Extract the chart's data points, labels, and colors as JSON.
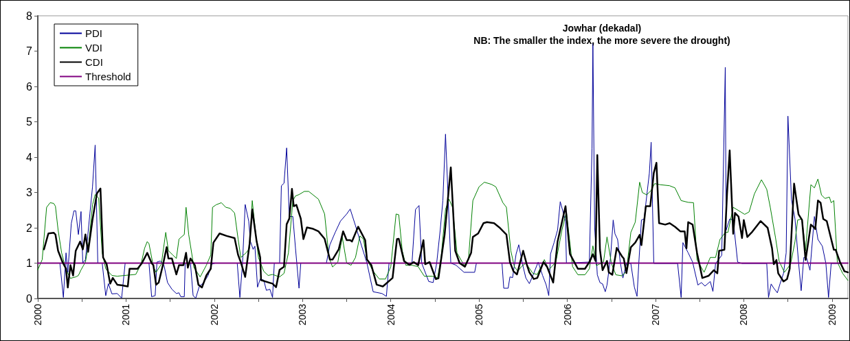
{
  "chart_data": {
    "type": "line",
    "title": "Jowhar (dekadal)",
    "subtitle": "NB: The smaller the index, the more severe the drought)",
    "xlim": [
      2000,
      2009.18
    ],
    "xticks": [
      2000,
      {
        "value": 2000.5,
        "label": null
      },
      2001,
      {
        "value": 2001.5,
        "label": null
      },
      2002,
      {
        "value": 2002.5,
        "label": null
      },
      2003,
      {
        "value": 2003.5,
        "label": null
      },
      2004,
      {
        "value": 2004.5,
        "label": null
      },
      2005,
      {
        "value": 2005.5,
        "label": null
      },
      2006,
      {
        "value": 2006.5,
        "label": null
      },
      2007,
      {
        "value": 2007.5,
        "label": null
      },
      2008,
      {
        "value": 2008.5,
        "label": null
      },
      2009
    ],
    "ylim": [
      0,
      8
    ],
    "yticks": [
      0,
      1,
      2,
      3,
      4,
      5,
      6,
      7,
      8
    ],
    "grid": false,
    "legend": "top left",
    "marker": "none",
    "line_style": "solid",
    "series": [
      {
        "name": "PDI",
        "color": "#000099",
        "x": [
          2000.25,
          2000.29,
          2000.32,
          2000.34,
          2000.38,
          2000.41,
          2000.43,
          2000.46,
          2000.49,
          2000.51,
          2000.54,
          2000.59,
          2000.62,
          2000.65,
          2000.68,
          2000.73,
          2000.77,
          2000.8,
          2000.84,
          2000.9,
          2000.95,
          2000.99,
          2001.26,
          2001.29,
          2001.33,
          2001.35,
          2001.39,
          2001.43,
          2001.47,
          2001.52,
          2001.57,
          2001.6,
          2001.62,
          2001.66,
          2001.67,
          2001.73,
          2001.76,
          2001.79,
          2001.83,
          2001.88,
          2001.93,
          2001.97,
          2002.01,
          2002.26,
          2002.29,
          2002.32,
          2002.35,
          2002.39,
          2002.41,
          2002.44,
          2002.46,
          2002.49,
          2002.52,
          2002.56,
          2002.59,
          2002.63,
          2002.66,
          2002.68,
          2002.74,
          2002.76,
          2002.79,
          2002.82,
          2002.85,
          2002.89,
          2002.92,
          2002.96,
          2002.98,
          2003.27,
          2003.31,
          2003.37,
          2003.43,
          2003.5,
          2003.54,
          2003.6,
          2003.67,
          2003.73,
          2003.8,
          2003.9,
          2003.95,
          2003.98,
          2004.24,
          2004.28,
          2004.32,
          2004.35,
          2004.43,
          2004.48,
          2004.52,
          2004.56,
          2004.59,
          2004.62,
          2004.68,
          2004.74,
          2004.83,
          2004.95,
          2004.97,
          2005.26,
          2005.28,
          2005.33,
          2005.35,
          2005.38,
          2005.42,
          2005.45,
          2005.49,
          2005.53,
          2005.57,
          2005.61,
          2005.67,
          2005.72,
          2005.76,
          2005.79,
          2005.81,
          2005.85,
          2005.89,
          2005.92,
          2005.98,
          2005.99,
          2006.25,
          2006.28,
          2006.29,
          2006.31,
          2006.34,
          2006.37,
          2006.4,
          2006.43,
          2006.45,
          2006.49,
          2006.52,
          2006.54,
          2006.57,
          2006.6,
          2006.63,
          2006.67,
          2006.72,
          2006.76,
          2006.79,
          2006.81,
          2006.84,
          2006.87,
          2006.93,
          2006.95,
          2006.98,
          2007.25,
          2007.29,
          2007.31,
          2007.37,
          2007.42,
          2007.48,
          2007.52,
          2007.56,
          2007.62,
          2007.65,
          2007.68,
          2007.75,
          2007.79,
          2007.8,
          2007.84,
          2007.88,
          2007.93,
          2007.98,
          2008.26,
          2008.28,
          2008.31,
          2008.34,
          2008.38,
          2008.41,
          2008.45,
          2008.48,
          2008.5,
          2008.54,
          2008.58,
          2008.62,
          2008.65,
          2008.68,
          2008.71,
          2008.75,
          2008.8,
          2008.84,
          2008.89,
          2008.93,
          2008.96,
          2008.99,
          2009.1
        ],
        "values": [
          1.0,
          0.03,
          1.29,
          0.74,
          2.13,
          2.48,
          2.48,
          1.81,
          2.46,
          1.0,
          1.1,
          2.39,
          3.16,
          4.34,
          1.0,
          1.0,
          0.08,
          0.42,
          0.13,
          0.14,
          0.01,
          1.0,
          1.0,
          0.05,
          0.08,
          1.03,
          1.06,
          0.94,
          0.45,
          0.26,
          0.14,
          0.16,
          0.05,
          0.05,
          1.0,
          1.0,
          0.08,
          0.01,
          0.34,
          0.45,
          0.65,
          0.97,
          1.0,
          1.0,
          0.03,
          1.0,
          2.66,
          2.19,
          1.61,
          1.39,
          1.48,
          0.32,
          0.55,
          0.52,
          0.23,
          0.26,
          0.03,
          1.0,
          1.0,
          3.19,
          3.26,
          4.26,
          2.32,
          2.32,
          1.42,
          0.29,
          1.0,
          1.0,
          1.52,
          1.87,
          2.19,
          2.39,
          2.53,
          2.06,
          1.48,
          1.0,
          0.19,
          0.14,
          0.06,
          1.0,
          1.0,
          2.52,
          2.63,
          1.0,
          0.48,
          0.45,
          1.0,
          1.94,
          2.77,
          4.65,
          1.0,
          0.94,
          0.74,
          0.74,
          1.0,
          1.0,
          0.29,
          0.29,
          0.61,
          0.59,
          1.26,
          1.52,
          1.0,
          0.58,
          0.42,
          0.65,
          1.03,
          0.65,
          0.39,
          0.08,
          1.26,
          1.58,
          1.94,
          2.74,
          2.19,
          1.0,
          1.03,
          4.25,
          7.22,
          2.0,
          0.67,
          0.45,
          0.41,
          0.19,
          0.38,
          1.16,
          2.22,
          1.83,
          1.67,
          1.03,
          0.58,
          0.99,
          0.99,
          0.32,
          0.06,
          0.99,
          2.22,
          2.25,
          3.55,
          4.42,
          0.99,
          0.99,
          0.03,
          1.58,
          1.29,
          1.03,
          0.38,
          0.45,
          0.35,
          0.48,
          0.2,
          0.99,
          1.22,
          6.54,
          1.93,
          2.25,
          2.22,
          1.03,
          0.99,
          0.99,
          0.03,
          0.41,
          0.29,
          0.16,
          0.41,
          0.71,
          1.29,
          5.16,
          2.8,
          2.25,
          1.03,
          0.22,
          1.16,
          1.16,
          0.8,
          2.32,
          1.67,
          1.48,
          0.99,
          0.03,
          0.99,
          0.99
        ]
      },
      {
        "name": "VDI",
        "color": "#008000",
        "x": [
          2000.0,
          2000.05,
          2000.1,
          2000.14,
          2000.18,
          2000.2,
          2000.23,
          2000.27,
          2000.32,
          2000.37,
          2000.43,
          2000.46,
          2000.49,
          2000.54,
          2000.58,
          2000.62,
          2000.65,
          2000.69,
          2000.73,
          2000.77,
          2000.84,
          2000.9,
          2000.98,
          2001.11,
          2001.17,
          2001.21,
          2001.24,
          2001.26,
          2001.31,
          2001.34,
          2001.4,
          2001.45,
          2001.48,
          2001.53,
          2001.57,
          2001.6,
          2001.66,
          2001.68,
          2001.71,
          2001.77,
          2001.84,
          2001.91,
          2001.96,
          2001.98,
          2002.02,
          2002.08,
          2002.13,
          2002.18,
          2002.23,
          2002.27,
          2002.3,
          2002.36,
          2002.4,
          2002.43,
          2002.46,
          2002.5,
          2002.56,
          2002.61,
          2002.66,
          2002.74,
          2002.79,
          2002.84,
          2002.89,
          2002.92,
          2002.96,
          2003.02,
          2003.07,
          2003.18,
          2003.25,
          2003.3,
          2003.34,
          2003.4,
          2003.45,
          2003.5,
          2003.55,
          2003.6,
          2003.65,
          2003.69,
          2003.73,
          2003.8,
          2003.87,
          2003.94,
          2004.0,
          2004.06,
          2004.09,
          2004.13,
          2004.17,
          2004.24,
          2004.31,
          2004.38,
          2004.47,
          2004.53,
          2004.57,
          2004.62,
          2004.66,
          2004.7,
          2004.75,
          2004.83,
          2004.88,
          2004.93,
          2005.0,
          2005.06,
          2005.14,
          2005.19,
          2005.27,
          2005.31,
          2005.36,
          2005.4,
          2005.44,
          2005.48,
          2005.53,
          2005.61,
          2005.66,
          2005.74,
          2005.79,
          2005.87,
          2005.94,
          2005.99,
          2006.06,
          2006.12,
          2006.2,
          2006.25,
          2006.29,
          2006.33,
          2006.41,
          2006.45,
          2006.5,
          2006.55,
          2006.62,
          2006.67,
          2006.72,
          2006.77,
          2006.82,
          2006.85,
          2006.9,
          2006.95,
          2006.99,
          2007.05,
          2007.16,
          2007.22,
          2007.29,
          2007.37,
          2007.43,
          2007.47,
          2007.55,
          2007.62,
          2007.68,
          2007.73,
          2007.79,
          2007.82,
          2007.88,
          2008.01,
          2008.06,
          2008.12,
          2008.2,
          2008.26,
          2008.3,
          2008.36,
          2008.4,
          2008.46,
          2008.53,
          2008.58,
          2008.61,
          2008.66,
          2008.7,
          2008.72,
          2008.76,
          2008.8,
          2008.84,
          2008.88,
          2008.92,
          2008.97,
          2008.99,
          2009.02,
          2009.06,
          2009.12,
          2009.18
        ],
        "values": [
          0.81,
          1.1,
          2.58,
          2.71,
          2.69,
          2.61,
          1.94,
          1.29,
          0.81,
          0.57,
          0.61,
          0.65,
          0.81,
          1.03,
          1.61,
          2.65,
          2.94,
          2.84,
          1.29,
          0.84,
          0.65,
          0.63,
          0.65,
          0.68,
          0.97,
          1.42,
          1.61,
          1.55,
          0.9,
          0.74,
          0.97,
          1.87,
          1.35,
          1.23,
          1.13,
          1.68,
          1.81,
          2.58,
          1.81,
          0.87,
          0.61,
          0.94,
          1.23,
          2.58,
          2.65,
          2.71,
          2.58,
          2.55,
          2.42,
          1.68,
          1.16,
          1.29,
          1.42,
          2.77,
          2.06,
          1.16,
          0.77,
          0.65,
          0.68,
          0.61,
          0.71,
          1.29,
          2.77,
          2.9,
          2.94,
          3.03,
          3.03,
          2.81,
          2.39,
          1.16,
          0.89,
          1.03,
          1.74,
          1.0,
          0.94,
          1.16,
          1.77,
          1.68,
          1.1,
          0.77,
          0.55,
          0.55,
          0.9,
          2.39,
          2.37,
          1.35,
          0.94,
          0.94,
          0.9,
          0.63,
          0.63,
          0.58,
          1.16,
          2.52,
          2.81,
          2.58,
          1.29,
          0.94,
          1.1,
          2.77,
          3.16,
          3.29,
          3.23,
          3.16,
          2.71,
          2.58,
          1.35,
          0.9,
          0.77,
          0.9,
          1.0,
          0.71,
          0.68,
          1.1,
          0.81,
          1.03,
          1.94,
          2.45,
          0.9,
          0.67,
          0.67,
          0.84,
          1.49,
          0.93,
          1.03,
          1.74,
          0.99,
          0.67,
          0.64,
          0.77,
          1.87,
          2.16,
          3.29,
          3.0,
          2.93,
          3.06,
          3.25,
          3.22,
          3.19,
          3.13,
          2.77,
          2.72,
          2.71,
          1.09,
          0.74,
          1.16,
          1.16,
          1.67,
          1.87,
          1.87,
          2.58,
          2.38,
          2.45,
          2.96,
          3.36,
          3.09,
          2.58,
          1.71,
          1.06,
          0.74,
          0.97,
          1.61,
          2.22,
          2.25,
          1.35,
          2.0,
          3.22,
          3.13,
          3.38,
          2.93,
          2.83,
          2.87,
          2.71,
          2.77,
          1.03,
          0.71,
          0.51
        ]
      },
      {
        "name": "CDI",
        "color": "#000000",
        "x": [
          2000.07,
          2000.12,
          2000.18,
          2000.2,
          2000.23,
          2000.28,
          2000.32,
          2000.34,
          2000.37,
          2000.4,
          2000.43,
          2000.48,
          2000.51,
          2000.54,
          2000.57,
          2000.62,
          2000.67,
          2000.71,
          2000.74,
          2000.78,
          2000.82,
          2000.85,
          2000.9,
          2000.96,
          2001.02,
          2001.04,
          2001.13,
          2001.18,
          2001.24,
          2001.29,
          2001.31,
          2001.34,
          2001.37,
          2001.42,
          2001.46,
          2001.48,
          2001.52,
          2001.57,
          2001.6,
          2001.65,
          2001.68,
          2001.7,
          2001.73,
          2001.78,
          2001.82,
          2001.86,
          2001.91,
          2001.96,
          2001.99,
          2002.06,
          2002.14,
          2002.23,
          2002.27,
          2002.3,
          2002.35,
          2002.4,
          2002.43,
          2002.48,
          2002.52,
          2002.53,
          2002.62,
          2002.66,
          2002.7,
          2002.74,
          2002.79,
          2002.82,
          2002.85,
          2002.88,
          2002.9,
          2002.93,
          2002.98,
          2003.01,
          2003.05,
          2003.12,
          2003.18,
          2003.25,
          2003.31,
          2003.34,
          2003.41,
          2003.46,
          2003.5,
          2003.54,
          2003.56,
          2003.63,
          2003.71,
          2003.73,
          2003.78,
          2003.84,
          2003.91,
          2004.02,
          2004.07,
          2004.09,
          2004.15,
          2004.21,
          2004.26,
          2004.31,
          2004.37,
          2004.39,
          2004.44,
          2004.51,
          2004.54,
          2004.61,
          2004.68,
          2004.73,
          2004.78,
          2004.84,
          2004.91,
          2004.93,
          2004.99,
          2005.05,
          2005.09,
          2005.17,
          2005.23,
          2005.31,
          2005.35,
          2005.39,
          2005.43,
          2005.46,
          2005.5,
          2005.54,
          2005.57,
          2005.62,
          2005.66,
          2005.73,
          2005.77,
          2005.84,
          2005.89,
          2005.98,
          2006.03,
          2006.12,
          2006.2,
          2006.25,
          2006.29,
          2006.32,
          2006.34,
          2006.37,
          2006.4,
          2006.45,
          2006.47,
          2006.51,
          2006.56,
          2006.62,
          2006.64,
          2006.67,
          2006.72,
          2006.77,
          2006.82,
          2006.84,
          2006.89,
          2006.94,
          2006.98,
          2007.01,
          2007.04,
          2007.11,
          2007.16,
          2007.22,
          2007.28,
          2007.33,
          2007.35,
          2007.37,
          2007.42,
          2007.47,
          2007.53,
          2007.6,
          2007.66,
          2007.7,
          2007.72,
          2007.78,
          2007.81,
          2007.84,
          2007.88,
          2007.9,
          2007.94,
          2007.98,
          2008.0,
          2008.04,
          2008.09,
          2008.19,
          2008.27,
          2008.32,
          2008.34,
          2008.37,
          2008.39,
          2008.45,
          2008.49,
          2008.52,
          2008.57,
          2008.62,
          2008.66,
          2008.7,
          2008.76,
          2008.8,
          2008.81,
          2008.84,
          2008.87,
          2008.9,
          2008.94,
          2009.02,
          2009.04,
          2009.09,
          2009.14,
          2009.18
        ],
        "values": [
          1.39,
          1.84,
          1.86,
          1.81,
          1.35,
          1.03,
          0.84,
          0.31,
          0.94,
          0.65,
          1.35,
          1.61,
          1.39,
          1.81,
          1.32,
          2.23,
          2.97,
          3.11,
          1.16,
          0.97,
          0.42,
          0.58,
          0.39,
          0.37,
          0.34,
          0.84,
          0.84,
          1.0,
          1.29,
          1.0,
          0.94,
          0.39,
          0.45,
          0.97,
          1.45,
          1.13,
          1.13,
          0.68,
          0.94,
          0.94,
          1.29,
          0.87,
          1.13,
          0.94,
          0.39,
          0.31,
          0.65,
          0.84,
          1.58,
          1.84,
          1.77,
          1.71,
          1.23,
          1.03,
          0.61,
          1.55,
          2.52,
          1.61,
          1.16,
          0.52,
          0.45,
          0.42,
          0.32,
          0.81,
          0.9,
          2.1,
          2.26,
          3.1,
          2.61,
          2.65,
          2.26,
          1.68,
          2.01,
          1.97,
          1.9,
          1.69,
          1.1,
          1.1,
          1.39,
          1.9,
          1.65,
          1.65,
          1.61,
          2.03,
          1.65,
          1.1,
          0.94,
          0.39,
          0.34,
          0.58,
          1.68,
          1.69,
          1.06,
          0.95,
          1.03,
          0.94,
          1.65,
          0.97,
          1.03,
          0.55,
          0.57,
          1.81,
          3.71,
          1.35,
          1.0,
          0.9,
          1.29,
          1.74,
          1.84,
          2.13,
          2.16,
          2.13,
          2.01,
          1.81,
          1.03,
          0.77,
          0.68,
          0.97,
          1.35,
          0.97,
          0.74,
          0.55,
          0.58,
          1.03,
          0.9,
          0.45,
          1.61,
          2.61,
          1.26,
          0.84,
          0.84,
          1.03,
          1.25,
          1.06,
          4.06,
          1.38,
          0.8,
          1.06,
          0.74,
          0.67,
          1.43,
          1.19,
          1.13,
          0.72,
          1.45,
          1.58,
          1.8,
          1.51,
          2.61,
          2.61,
          3.55,
          3.84,
          2.13,
          2.09,
          2.13,
          2.03,
          1.9,
          1.9,
          1.42,
          2.16,
          2.09,
          1.29,
          0.58,
          0.64,
          0.8,
          0.71,
          1.35,
          1.38,
          2.96,
          4.19,
          1.83,
          2.42,
          2.32,
          1.71,
          2.22,
          1.74,
          1.87,
          2.19,
          2.0,
          1.42,
          0.97,
          1.09,
          0.71,
          0.48,
          0.55,
          0.84,
          3.25,
          2.38,
          2.22,
          1.09,
          2.09,
          2.0,
          1.96,
          2.77,
          2.71,
          2.25,
          2.19,
          1.38,
          1.38,
          1.03,
          0.77,
          0.74
        ]
      },
      {
        "name": "Threshold",
        "color": "#800080",
        "x": [
          2000,
          2009.18
        ],
        "values": [
          1,
          1
        ]
      }
    ]
  }
}
